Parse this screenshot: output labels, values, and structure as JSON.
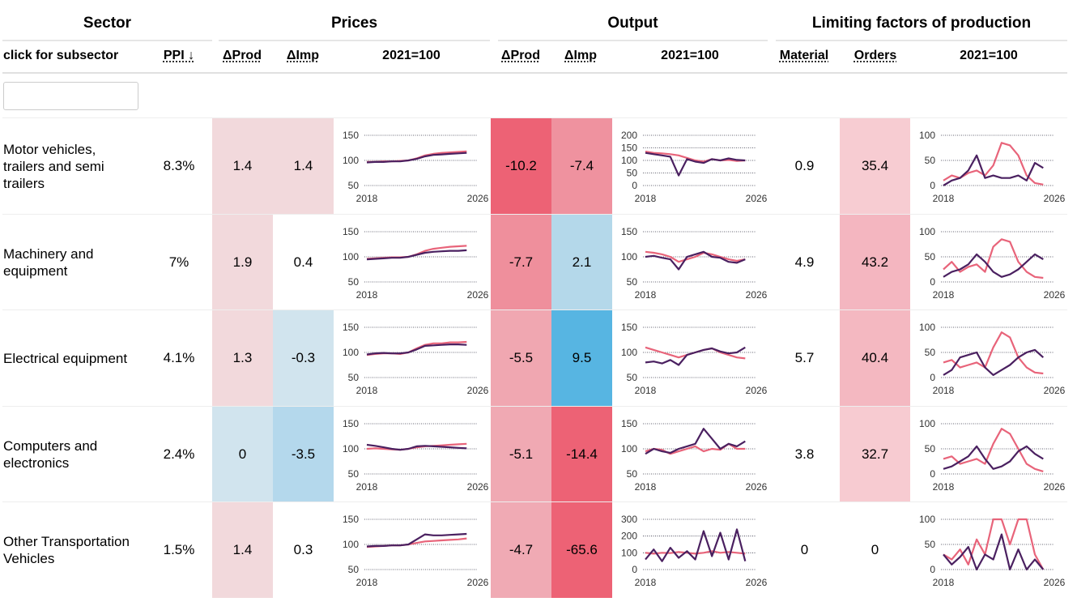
{
  "header": {
    "groups": [
      "Sector",
      "Prices",
      "Output",
      "Limiting factors of production"
    ],
    "columns": [
      "click for subsector",
      "PPI ↓",
      "ΔProd",
      "ΔImp",
      "2021=100",
      "ΔProd",
      "ΔImp",
      "2021=100",
      "Material",
      "Orders",
      "2021=100"
    ]
  },
  "x": [
    2018,
    2018.6,
    2019.2,
    2019.8,
    2020.4,
    2021,
    2021.6,
    2022.2,
    2022.8,
    2023.4,
    2024,
    2024.6,
    2025.2
  ],
  "rows": [
    {
      "sector": "Motor vehicles, trailers and semi trailers",
      "ppi": "8.3%",
      "cells": [
        {
          "value": 1.4,
          "color": "#f2d9dc"
        },
        {
          "value": 1.4,
          "color": "#f2d9dc"
        },
        {
          "value": -10.2,
          "color": "#ed6275"
        },
        {
          "value": -7.4,
          "color": "#ef929f"
        },
        {
          "value": 0.9,
          "color": "#ffffff"
        },
        {
          "value": 35.4,
          "color": "#f7ccd2"
        }
      ],
      "charts": [
        {
          "ylim": [
            50,
            150
          ],
          "yticks": [
            150,
            100,
            50
          ],
          "xlim": [
            2018,
            2026
          ],
          "xticks": [
            2018,
            2026
          ],
          "series": [
            {
              "color": "#e8647a",
              "values": [
                97,
                97,
                98,
                98,
                99,
                100,
                104,
                110,
                113,
                115,
                116,
                117,
                118
              ]
            },
            {
              "color": "#4a2060",
              "values": [
                96,
                97,
                97,
                98,
                98,
                100,
                103,
                108,
                111,
                112,
                113,
                114,
                115
              ]
            }
          ]
        },
        {
          "ylim": [
            0,
            200
          ],
          "yticks": [
            200,
            150,
            100,
            50,
            0
          ],
          "xlim": [
            2018,
            2026
          ],
          "xticks": [
            2018,
            2026
          ],
          "series": [
            {
              "color": "#e8647a",
              "values": [
                135,
                130,
                128,
                125,
                120,
                110,
                100,
                95,
                105,
                100,
                102,
                98,
                100
              ]
            },
            {
              "color": "#4a2060",
              "values": [
                130,
                125,
                120,
                115,
                40,
                105,
                95,
                90,
                105,
                100,
                108,
                102,
                100
              ]
            }
          ]
        },
        {
          "ylim": [
            0,
            100
          ],
          "yticks": [
            100,
            50,
            0
          ],
          "xlim": [
            2018,
            2026
          ],
          "xticks": [
            2018,
            2026
          ],
          "series": [
            {
              "color": "#e8647a",
              "values": [
                10,
                20,
                15,
                25,
                30,
                20,
                40,
                85,
                80,
                60,
                20,
                5,
                2
              ]
            },
            {
              "color": "#4a2060",
              "values": [
                0,
                10,
                15,
                30,
                60,
                15,
                20,
                15,
                15,
                20,
                10,
                45,
                35
              ]
            }
          ]
        }
      ]
    },
    {
      "sector": "Machinery and equipment",
      "ppi": "7%",
      "cells": [
        {
          "value": 1.9,
          "color": "#f2d9dc"
        },
        {
          "value": 0.4,
          "color": "#ffffff"
        },
        {
          "value": -7.7,
          "color": "#ef8f9c"
        },
        {
          "value": 2.1,
          "color": "#b4d8ea"
        },
        {
          "value": 4.9,
          "color": "#ffffff"
        },
        {
          "value": 43.2,
          "color": "#f4b6c0"
        }
      ],
      "charts": [
        {
          "ylim": [
            50,
            150
          ],
          "yticks": [
            150,
            100,
            50
          ],
          "xlim": [
            2018,
            2026
          ],
          "xticks": [
            2018,
            2026
          ],
          "series": [
            {
              "color": "#e8647a",
              "values": [
                96,
                97,
                98,
                99,
                99,
                100,
                105,
                112,
                116,
                118,
                120,
                121,
                122
              ]
            },
            {
              "color": "#4a2060",
              "values": [
                95,
                96,
                97,
                98,
                98,
                100,
                104,
                108,
                110,
                111,
                112,
                112,
                113
              ]
            }
          ]
        },
        {
          "ylim": [
            50,
            150
          ],
          "yticks": [
            150,
            100,
            50
          ],
          "xlim": [
            2018,
            2026
          ],
          "xticks": [
            2018,
            2026
          ],
          "series": [
            {
              "color": "#e8647a",
              "values": [
                110,
                108,
                105,
                100,
                90,
                95,
                100,
                108,
                105,
                100,
                95,
                92,
                95
              ]
            },
            {
              "color": "#4a2060",
              "values": [
                100,
                102,
                98,
                95,
                75,
                100,
                105,
                110,
                100,
                98,
                90,
                88,
                95
              ]
            }
          ]
        },
        {
          "ylim": [
            0,
            100
          ],
          "yticks": [
            100,
            50,
            0
          ],
          "xlim": [
            2018,
            2026
          ],
          "xticks": [
            2018,
            2026
          ],
          "series": [
            {
              "color": "#e8647a",
              "values": [
                25,
                40,
                20,
                30,
                35,
                20,
                70,
                85,
                80,
                40,
                20,
                10,
                8
              ]
            },
            {
              "color": "#4a2060",
              "values": [
                10,
                20,
                25,
                35,
                55,
                40,
                20,
                10,
                15,
                25,
                40,
                55,
                45
              ]
            }
          ]
        }
      ]
    },
    {
      "sector": "Electrical equipment",
      "ppi": "4.1%",
      "cells": [
        {
          "value": 1.3,
          "color": "#f2d9dc"
        },
        {
          "value": -0.3,
          "color": "#d1e4ee"
        },
        {
          "value": -5.5,
          "color": "#f0a7b1"
        },
        {
          "value": 9.5,
          "color": "#57b5e2"
        },
        {
          "value": 5.7,
          "color": "#ffffff"
        },
        {
          "value": 40.4,
          "color": "#f4b8c1"
        }
      ],
      "charts": [
        {
          "ylim": [
            50,
            150
          ],
          "yticks": [
            150,
            100,
            50
          ],
          "xlim": [
            2018,
            2026
          ],
          "xticks": [
            2018,
            2026
          ],
          "series": [
            {
              "color": "#e8647a",
              "values": [
                95,
                97,
                98,
                98,
                97,
                100,
                108,
                115,
                118,
                118,
                120,
                120,
                121
              ]
            },
            {
              "color": "#4a2060",
              "values": [
                96,
                98,
                99,
                98,
                98,
                100,
                106,
                113,
                114,
                115,
                116,
                116,
                115
              ]
            }
          ]
        },
        {
          "ylim": [
            50,
            150
          ],
          "yticks": [
            150,
            100,
            50
          ],
          "xlim": [
            2018,
            2026
          ],
          "xticks": [
            2018,
            2026
          ],
          "series": [
            {
              "color": "#e8647a",
              "values": [
                110,
                105,
                100,
                95,
                90,
                95,
                100,
                105,
                108,
                100,
                95,
                90,
                88
              ]
            },
            {
              "color": "#4a2060",
              "values": [
                80,
                82,
                78,
                85,
                75,
                95,
                100,
                105,
                108,
                102,
                98,
                100,
                110
              ]
            }
          ]
        },
        {
          "ylim": [
            0,
            100
          ],
          "yticks": [
            100,
            50,
            0
          ],
          "xlim": [
            2018,
            2026
          ],
          "xticks": [
            2018,
            2026
          ],
          "series": [
            {
              "color": "#e8647a",
              "values": [
                30,
                35,
                20,
                25,
                30,
                20,
                60,
                90,
                80,
                40,
                20,
                10,
                8
              ]
            },
            {
              "color": "#4a2060",
              "values": [
                5,
                15,
                40,
                45,
                50,
                20,
                5,
                15,
                25,
                40,
                50,
                55,
                40
              ]
            }
          ]
        }
      ]
    },
    {
      "sector": "Computers and electronics",
      "ppi": "2.4%",
      "cells": [
        {
          "value": 0,
          "color": "#d1e4ee"
        },
        {
          "value": -3.5,
          "color": "#b4d8ec"
        },
        {
          "value": -5.1,
          "color": "#f0a9b3"
        },
        {
          "value": -14.4,
          "color": "#ed6275"
        },
        {
          "value": 3.8,
          "color": "#ffffff"
        },
        {
          "value": 32.7,
          "color": "#f7cbd1"
        }
      ],
      "charts": [
        {
          "ylim": [
            50,
            150
          ],
          "yticks": [
            150,
            100,
            50
          ],
          "xlim": [
            2018,
            2026
          ],
          "xticks": [
            2018,
            2026
          ],
          "series": [
            {
              "color": "#e8647a",
              "values": [
                100,
                101,
                100,
                99,
                98,
                100,
                103,
                105,
                106,
                107,
                108,
                109,
                110
              ]
            },
            {
              "color": "#4a2060",
              "values": [
                108,
                106,
                103,
                100,
                98,
                100,
                105,
                106,
                105,
                104,
                103,
                102,
                101
              ]
            }
          ]
        },
        {
          "ylim": [
            50,
            150
          ],
          "yticks": [
            150,
            100,
            50
          ],
          "xlim": [
            2018,
            2026
          ],
          "xticks": [
            2018,
            2026
          ],
          "series": [
            {
              "color": "#e8647a",
              "values": [
                95,
                100,
                98,
                90,
                95,
                100,
                105,
                95,
                100,
                98,
                110,
                100,
                100
              ]
            },
            {
              "color": "#4a2060",
              "values": [
                90,
                100,
                95,
                92,
                100,
                105,
                110,
                140,
                120,
                100,
                110,
                105,
                115
              ]
            }
          ]
        },
        {
          "ylim": [
            0,
            100
          ],
          "yticks": [
            100,
            50,
            0
          ],
          "xlim": [
            2018,
            2026
          ],
          "xticks": [
            2018,
            2026
          ],
          "series": [
            {
              "color": "#e8647a",
              "values": [
                30,
                35,
                20,
                25,
                30,
                20,
                60,
                90,
                80,
                50,
                20,
                10,
                5
              ]
            },
            {
              "color": "#4a2060",
              "values": [
                10,
                15,
                25,
                35,
                55,
                30,
                10,
                15,
                25,
                45,
                55,
                40,
                30
              ]
            }
          ]
        }
      ]
    },
    {
      "sector": "Other Transportation Vehicles",
      "ppi": "1.5%",
      "cells": [
        {
          "value": 1.4,
          "color": "#f2d9dc"
        },
        {
          "value": 0.3,
          "color": "#ffffff"
        },
        {
          "value": -4.7,
          "color": "#f0aab4"
        },
        {
          "value": -65.6,
          "color": "#ed6275"
        },
        {
          "value": 0,
          "color": "#ffffff"
        },
        {
          "value": 0,
          "color": "#ffffff"
        }
      ],
      "charts": [
        {
          "ylim": [
            50,
            150
          ],
          "yticks": [
            150,
            100,
            50
          ],
          "xlim": [
            2018,
            2026
          ],
          "xticks": [
            2018,
            2026
          ],
          "series": [
            {
              "color": "#e8647a",
              "values": [
                95,
                96,
                97,
                98,
                98,
                100,
                103,
                106,
                107,
                108,
                109,
                110,
                112
              ]
            },
            {
              "color": "#4a2060",
              "values": [
                96,
                97,
                97,
                98,
                98,
                100,
                110,
                120,
                118,
                118,
                119,
                120,
                121
              ]
            }
          ]
        },
        {
          "ylim": [
            0,
            300
          ],
          "yticks": [
            300,
            200,
            100,
            0
          ],
          "xlim": [
            2018,
            2026
          ],
          "xticks": [
            2018,
            2026
          ],
          "series": [
            {
              "color": "#e8647a",
              "values": [
                100,
                95,
                100,
                98,
                105,
                100,
                95,
                100,
                110,
                100,
                105,
                100,
                95
              ]
            },
            {
              "color": "#4a2060",
              "values": [
                60,
                120,
                50,
                130,
                70,
                110,
                60,
                230,
                80,
                220,
                60,
                240,
                50
              ]
            }
          ]
        },
        {
          "ylim": [
            0,
            100
          ],
          "yticks": [
            100,
            50,
            0
          ],
          "xlim": [
            2018,
            2026
          ],
          "xticks": [
            2018,
            2026
          ],
          "series": [
            {
              "color": "#e8647a",
              "values": [
                30,
                20,
                40,
                10,
                60,
                30,
                100,
                100,
                50,
                100,
                100,
                30,
                0
              ]
            },
            {
              "color": "#4a2060",
              "values": [
                30,
                10,
                25,
                45,
                0,
                30,
                20,
                70,
                0,
                40,
                0,
                20,
                0
              ]
            }
          ]
        }
      ]
    }
  ]
}
